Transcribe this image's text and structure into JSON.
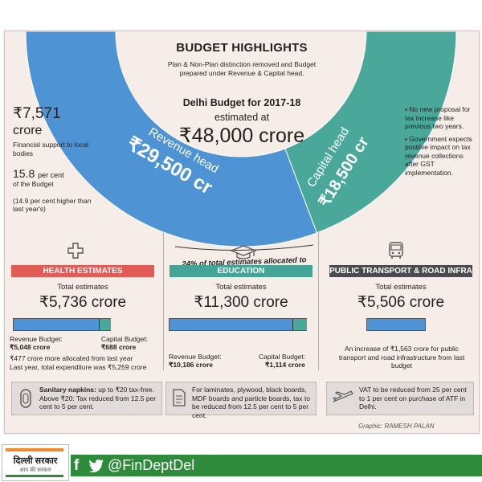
{
  "header": {
    "title": "BUDGET HIGHLIGHTS",
    "subtitle": "Plan & Non-Plan distinction removed and Budget prepared under Revenue & Capital head."
  },
  "center": {
    "line1": "Delhi Budget for 2017-18",
    "line2": "estimated at",
    "amount": "₹48,000 crore",
    "revenue_head_label": "Revenue head",
    "revenue_head_amount": "₹29,500 cr",
    "capital_head_label": "Capital head",
    "capital_head_amount": "₹18,500 cr",
    "allocation_note": "24% of total estimates allocated to"
  },
  "left": {
    "amount": "₹7,571",
    "unit": "crore",
    "desc": "Financial support to local bodies",
    "percent": "15.8",
    "percent_suffix": "per cent",
    "percent_desc": "of the Budget",
    "compare": "(14.9 per cent higher than last year's)"
  },
  "right_bullets": [
    "No new proposal for tax increase like previous two years.",
    "Government expects positive impact on tax revenue collections after GST implementation."
  ],
  "colors": {
    "revenue_blue": "#4e93d4",
    "capital_teal": "#4aa89a",
    "health_red": "#e15c57",
    "education_teal": "#44a497",
    "transport_dark": "#4b4b4d"
  },
  "health": {
    "icon": "plus-cross-icon",
    "banner": "HEALTH ESTIMATES",
    "total_label": "Total estimates",
    "total": "₹5,736 crore",
    "revenue_label": "Revenue Budget:",
    "revenue_value": "₹5,048 crore",
    "capital_label": "Capital Budget:",
    "capital_value": "₹688 crore",
    "revenue_share": 0.88,
    "note1": "₹477 crore more allocated from last year",
    "note2": "Last year, total expenditure was ₹5,259 crore"
  },
  "education": {
    "icon": "graduation-cap-icon",
    "banner": "EDUCATION",
    "total_label": "Total estimates",
    "total": "₹11,300 crore",
    "revenue_label": "Revenue Budget:",
    "revenue_value": "₹10,186 crore",
    "capital_label": "Capital Budget:",
    "capital_value": "₹1,114 crore",
    "revenue_share": 0.9
  },
  "transport": {
    "icon": "bus-icon",
    "banner": "PUBLIC TRANSPORT & ROAD INFRA",
    "total_label": "Total estimates",
    "total": "₹5,506 crore",
    "note": "An increase of ₹1,563 crore for public transport and road infrastructure from last budget"
  },
  "tax_cuts": [
    {
      "icon": "sanitary-pad-icon",
      "bold": "Sanitary napkins:",
      "text": " up to ₹20 tax-free. Above ₹20: Tax reduced from 12.5 per cent to 5 per cent."
    },
    {
      "icon": "document-icon",
      "bold": "",
      "text": "For laminates, plywood, black boards, MDF boards and particle boards, tax to be reduced from 12.5 per cent to 5 per cent."
    },
    {
      "icon": "airplane-icon",
      "bold": "",
      "text": "VAT to be reduced from 25 per cent to 1 per cent on purchase of ATF in Delhi."
    }
  ],
  "credit": "Graphic: RAMESH PALAN",
  "footer": {
    "logo_text": "दिल्ली सरकार",
    "logo_sub": "आप की सरकार",
    "handle": "@FinDeptDel"
  }
}
